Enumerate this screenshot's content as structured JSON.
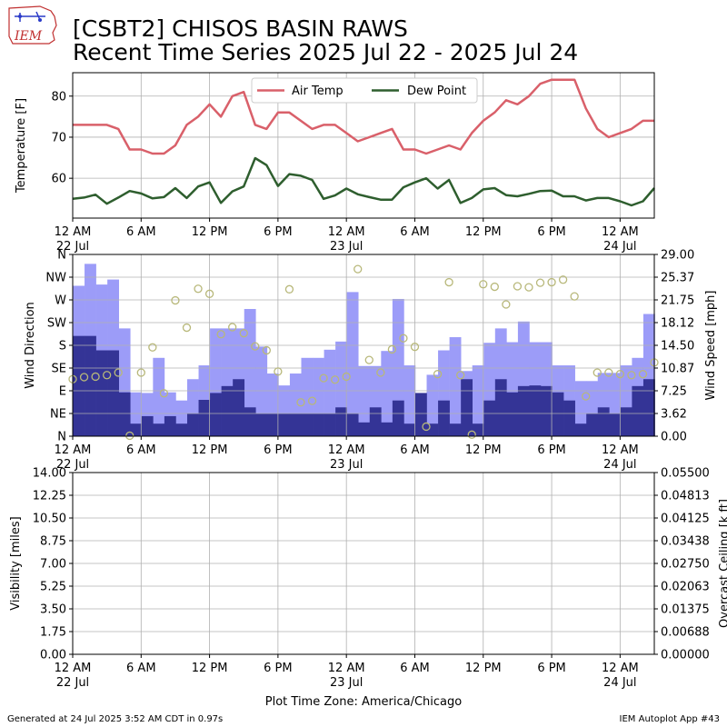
{
  "header": {
    "logo_text": "IEM",
    "title_line1": "[CSBT2] CHISOS BASIN RAWS",
    "title_line2": "Recent Time Series 2025 Jul 22 - 2025 Jul 24"
  },
  "footer": {
    "generated": "Generated at 24 Jul 2025 3:52 AM CDT in 0.97s",
    "app": "IEM Autoplot App #43",
    "timezone": "Plot Time Zone: America/Chicago"
  },
  "colors": {
    "air_temp": "#d9606a",
    "dew_point": "#2e5e2e",
    "gust_bar": "#9c9cf8",
    "speed_bar": "#343496",
    "direction_marker": "#b8b87a",
    "ceiling_axis": "#008000",
    "grid": "#b0b0b0"
  },
  "time_axis": {
    "ticks": [
      "12 AM",
      "6 AM",
      "12 PM",
      "6 PM",
      "12 AM",
      "6 AM",
      "12 PM",
      "6 PM",
      "12 AM"
    ],
    "dates": [
      {
        "tick": 0,
        "label": "22 Jul"
      },
      {
        "tick": 4,
        "label": "23 Jul"
      },
      {
        "tick": 8,
        "label": "24 Jul"
      }
    ],
    "range_hours": [
      0,
      51
    ]
  },
  "chart_data": [
    {
      "type": "line",
      "ylabel": "Temperature [F]",
      "ylim": [
        50.3,
        85.7
      ],
      "yticks": [
        60,
        70,
        80
      ],
      "grid": true,
      "legend": "top-center",
      "series": [
        {
          "name": "Air Temp",
          "x": [
            0,
            1,
            2,
            3,
            4,
            5,
            6,
            7,
            8,
            9,
            10,
            11,
            12,
            13,
            14,
            15,
            16,
            17,
            18,
            19,
            20,
            21,
            22,
            23,
            24,
            25,
            26,
            27,
            28,
            29,
            30,
            31,
            32,
            33,
            34,
            35,
            36,
            37,
            38,
            39,
            40,
            41,
            42,
            43,
            44,
            45,
            46,
            47,
            48,
            49,
            50,
            51
          ],
          "values": [
            73,
            73,
            73,
            73,
            72,
            67,
            67,
            66,
            66,
            68,
            73,
            75,
            78,
            75,
            80,
            81,
            73,
            72,
            76,
            76,
            74,
            72,
            73,
            73,
            71,
            69,
            70,
            71,
            72,
            67,
            67,
            66,
            67,
            68,
            67,
            71,
            74,
            76,
            79,
            78,
            80,
            83,
            84,
            84,
            84,
            77,
            72,
            70,
            71,
            72,
            74,
            74
          ]
        },
        {
          "name": "Dew Point",
          "x": [
            0,
            1,
            2,
            3,
            4,
            5,
            6,
            7,
            8,
            9,
            10,
            11,
            12,
            13,
            14,
            15,
            16,
            17,
            18,
            19,
            20,
            21,
            22,
            23,
            24,
            25,
            26,
            27,
            28,
            29,
            30,
            31,
            32,
            33,
            34,
            35,
            36,
            37,
            38,
            39,
            40,
            41,
            42,
            43,
            44,
            45,
            46,
            47,
            48,
            49,
            50,
            51
          ],
          "values": [
            55,
            55.3,
            56,
            53.8,
            55.3,
            56.9,
            56.3,
            55.1,
            55.4,
            57.6,
            55.2,
            58,
            59,
            54,
            56.8,
            58,
            64.9,
            63.2,
            58.1,
            61,
            60.6,
            59.6,
            55,
            55.8,
            57.5,
            56.1,
            55.4,
            54.8,
            54.8,
            57.8,
            59,
            60,
            57.5,
            59.6,
            54,
            55.2,
            57.3,
            57.6,
            55.9,
            55.6,
            56.2,
            56.9,
            57,
            55.6,
            55.6,
            54.6,
            55.2,
            55.2,
            54.4,
            53.4,
            54.4,
            57.6
          ]
        }
      ]
    },
    {
      "type": "bar",
      "ylabel": "Wind Direction",
      "y2label": "Wind Speed [mph]",
      "ylim_direction": [
        0,
        360
      ],
      "direction_ticks": [
        "N",
        "NE",
        "E",
        "SE",
        "S",
        "SW",
        "W",
        "NW",
        "N"
      ],
      "ylim_speed": [
        0,
        29
      ],
      "speed_ticks": [
        "0.00",
        "3.62",
        "7.25",
        "10.87",
        "14.50",
        "18.12",
        "21.75",
        "25.37",
        "29.00"
      ],
      "grid": true,
      "series": [
        {
          "name": "Gust",
          "x": [
            0,
            1,
            2,
            3,
            4,
            5,
            6,
            7,
            8,
            9,
            10,
            11,
            12,
            13,
            14,
            15,
            16,
            17,
            18,
            19,
            20,
            21,
            22,
            23,
            24,
            25,
            26,
            27,
            28,
            29,
            30,
            31,
            32,
            33,
            34,
            35,
            36,
            37,
            38,
            39,
            40,
            41,
            42,
            43,
            44,
            45,
            46,
            47,
            48,
            49,
            50
          ],
          "values": [
            24,
            27.5,
            24.2,
            25,
            17.2,
            7,
            6.9,
            12.5,
            7,
            5.7,
            9.1,
            11.3,
            17.2,
            17.2,
            17.2,
            20.3,
            14.3,
            10,
            8.1,
            10,
            12.5,
            12.5,
            13.8,
            15.1,
            23,
            11.2,
            11.2,
            13.6,
            21.9,
            11.3,
            6.3,
            9.8,
            13.7,
            15.8,
            10.4,
            11.3,
            14.9,
            17.2,
            15,
            18.3,
            15,
            15,
            11.3,
            11.3,
            8.8,
            8.8,
            10.1,
            10.1,
            11.3,
            12.5,
            19.5
          ]
        },
        {
          "name": "Speed",
          "x": [
            0,
            1,
            2,
            3,
            4,
            5,
            6,
            7,
            8,
            9,
            10,
            11,
            12,
            13,
            14,
            15,
            16,
            17,
            18,
            19,
            20,
            21,
            22,
            23,
            24,
            25,
            26,
            27,
            28,
            29,
            30,
            31,
            32,
            33,
            34,
            35,
            36,
            37,
            38,
            39,
            40,
            41,
            42,
            43,
            44,
            45,
            46,
            47,
            48,
            49,
            50
          ],
          "values": [
            16,
            16,
            13.7,
            13.7,
            7,
            2,
            3.2,
            2,
            3.2,
            2,
            3.6,
            5.8,
            6.9,
            8,
            9.1,
            4.6,
            3.6,
            3.6,
            3.6,
            3.6,
            3.6,
            3.6,
            3.6,
            4.6,
            3.6,
            2.2,
            4.6,
            2.2,
            5.7,
            2,
            6.9,
            2,
            5.7,
            2,
            9.1,
            2,
            5.7,
            9.1,
            7,
            8,
            8.1,
            8,
            7,
            5.7,
            2,
            3.6,
            4.6,
            3.6,
            4.6,
            8,
            9.1
          ]
        },
        {
          "name": "Direction",
          "x": [
            0,
            1,
            2,
            3,
            4,
            5,
            6,
            7,
            8,
            9,
            10,
            11,
            12,
            13,
            14,
            15,
            16,
            17,
            18,
            19,
            20,
            21,
            22,
            23,
            24,
            25,
            26,
            27,
            28,
            29,
            30,
            31,
            32,
            33,
            34,
            35,
            36,
            37,
            38,
            39,
            40,
            41,
            42,
            43,
            44,
            45,
            46,
            47,
            48,
            49,
            50,
            51
          ],
          "values": [
            113,
            117,
            118,
            121,
            126,
            1,
            126,
            176,
            85,
            269,
            215,
            292,
            282,
            202,
            216,
            204,
            178,
            170,
            128,
            291,
            67,
            70,
            115,
            112,
            118,
            331,
            151,
            126,
            172,
            194,
            177,
            19,
            123,
            305,
            121,
            3,
            301,
            296,
            261,
            297,
            295,
            304,
            305,
            310,
            277,
            79,
            126,
            126,
            123,
            121,
            123,
            146
          ]
        }
      ]
    },
    {
      "type": "line",
      "ylabel": "Visibility [miles]",
      "y2label": "Overcast Ceiling [k ft]",
      "ylim": [
        0,
        14
      ],
      "yticks": [
        "0.00",
        "1.75",
        "3.50",
        "5.25",
        "7.00",
        "8.75",
        "10.50",
        "12.25",
        "14.00"
      ],
      "y2lim": [
        0,
        0.055
      ],
      "y2ticks": [
        "0.00000",
        "0.00688",
        "0.01375",
        "0.02063",
        "0.02750",
        "0.03438",
        "0.04125",
        "0.04813",
        "0.05500"
      ],
      "grid": true,
      "series": []
    }
  ]
}
